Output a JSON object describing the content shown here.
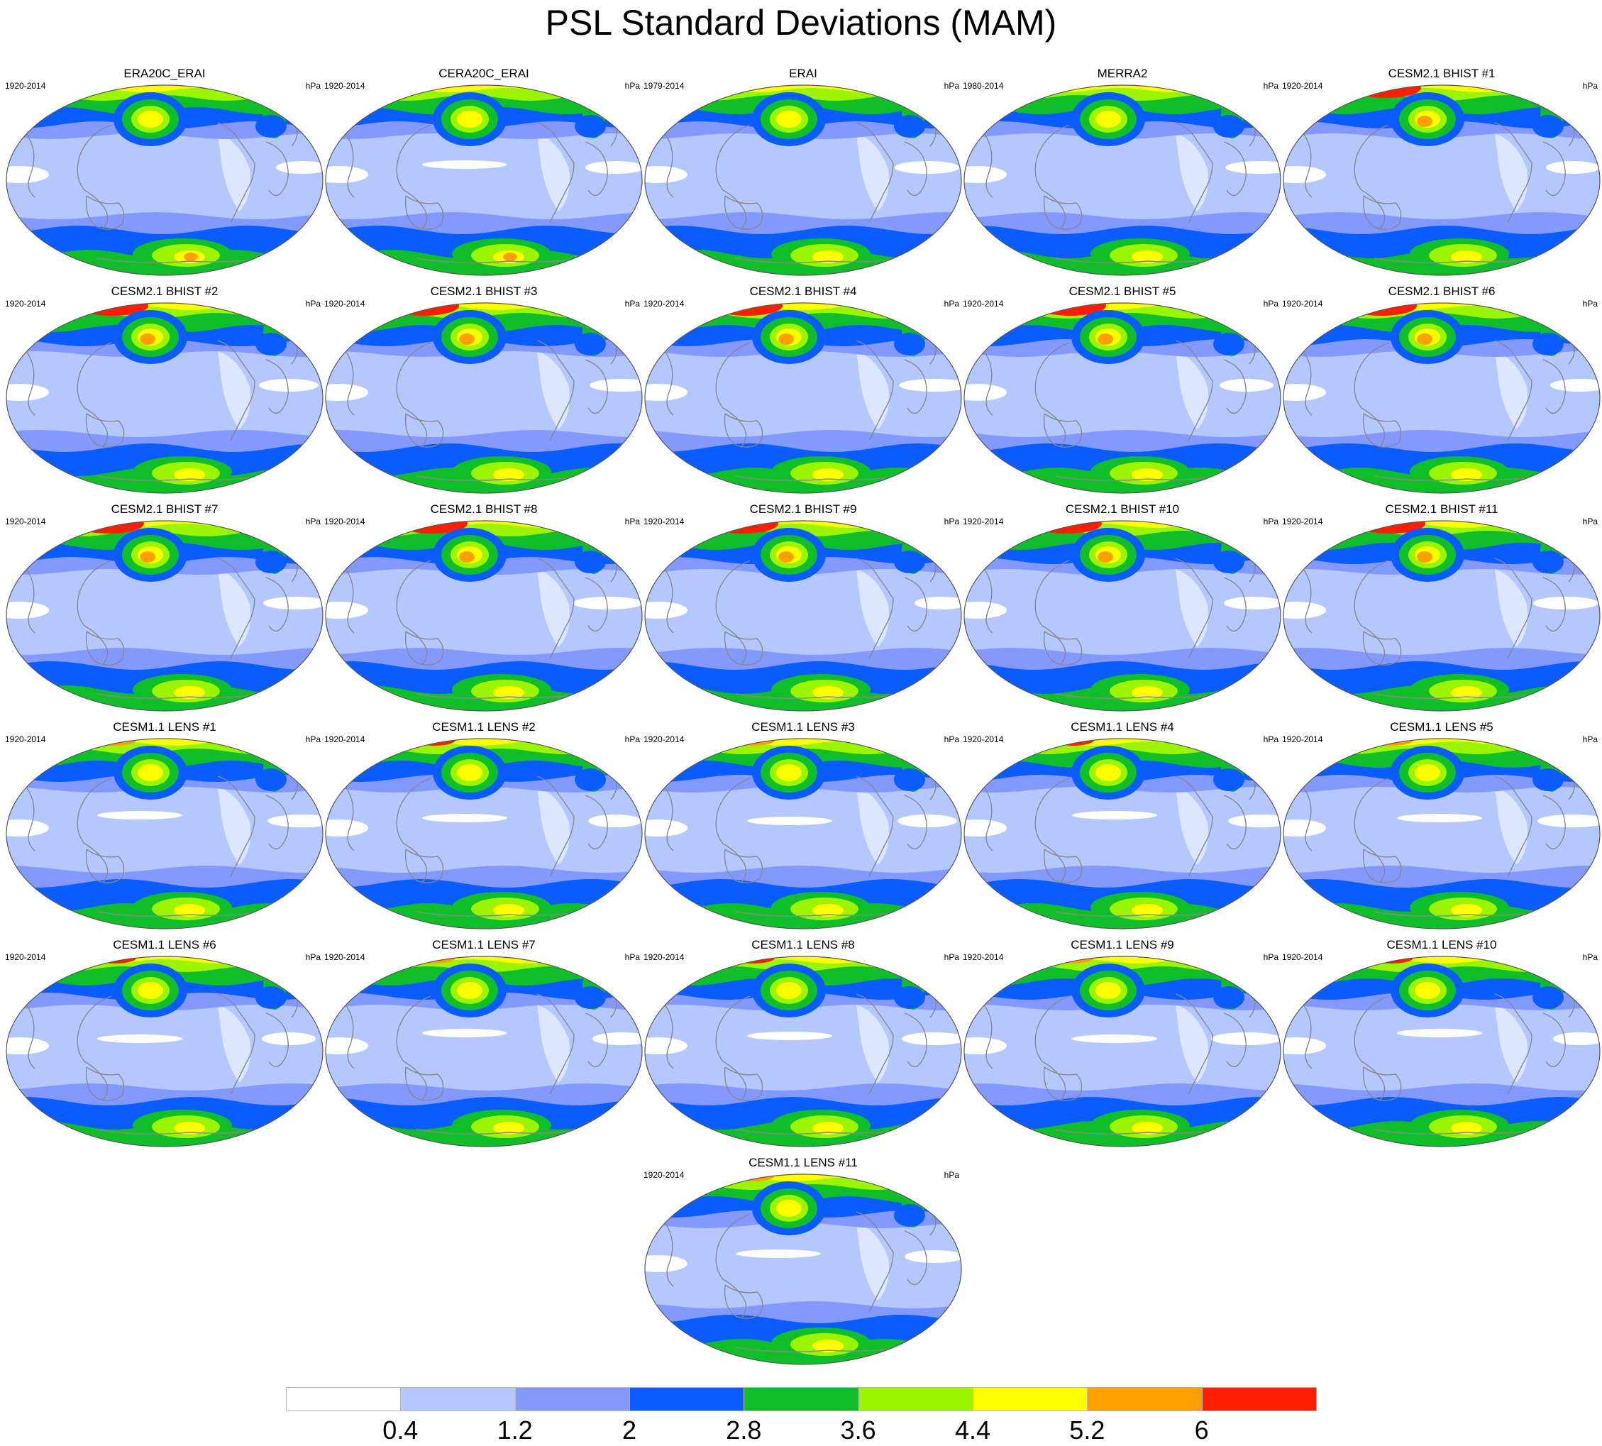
{
  "title": "PSL Standard Deviations (MAM)",
  "units": "hPa",
  "panels": [
    {
      "title": "ERA20C_ERAI",
      "years": "1920-2014"
    },
    {
      "title": "CERA20C_ERAI",
      "years": "1920-2014"
    },
    {
      "title": "ERAI",
      "years": "1979-2014"
    },
    {
      "title": "MERRA2",
      "years": "1980-2014"
    },
    {
      "title": "CESM2.1 BHIST #1",
      "years": "1920-2014"
    },
    {
      "title": "CESM2.1 BHIST #2",
      "years": "1920-2014"
    },
    {
      "title": "CESM2.1 BHIST #3",
      "years": "1920-2014"
    },
    {
      "title": "CESM2.1 BHIST #4",
      "years": "1920-2014"
    },
    {
      "title": "CESM2.1 BHIST #5",
      "years": "1920-2014"
    },
    {
      "title": "CESM2.1 BHIST #6",
      "years": "1920-2014"
    },
    {
      "title": "CESM2.1 BHIST #7",
      "years": "1920-2014"
    },
    {
      "title": "CESM2.1 BHIST #8",
      "years": "1920-2014"
    },
    {
      "title": "CESM2.1 BHIST #9",
      "years": "1920-2014"
    },
    {
      "title": "CESM2.1 BHIST #10",
      "years": "1920-2014"
    },
    {
      "title": "CESM2.1 BHIST #11",
      "years": "1920-2014"
    },
    {
      "title": "CESM1.1 LENS #1",
      "years": "1920-2014"
    },
    {
      "title": "CESM1.1 LENS #2",
      "years": "1920-2014"
    },
    {
      "title": "CESM1.1 LENS #3",
      "years": "1920-2014"
    },
    {
      "title": "CESM1.1 LENS #4",
      "years": "1920-2014"
    },
    {
      "title": "CESM1.1 LENS #5",
      "years": "1920-2014"
    },
    {
      "title": "CESM1.1 LENS #6",
      "years": "1920-2014"
    },
    {
      "title": "CESM1.1 LENS #7",
      "years": "1920-2014"
    },
    {
      "title": "CESM1.1 LENS #8",
      "years": "1920-2014"
    },
    {
      "title": "CESM1.1 LENS #9",
      "years": "1920-2014"
    },
    {
      "title": "CESM1.1 LENS #10",
      "years": "1920-2014"
    },
    {
      "title": "CESM1.1 LENS #11",
      "years": "1920-2014"
    }
  ],
  "colorbar": {
    "colors": [
      "#ffffff",
      "#b4c8ff",
      "#8499ff",
      "#0a5cff",
      "#0fbe28",
      "#9bf500",
      "#ffff00",
      "#ffa000",
      "#ff1e00"
    ],
    "labels": [
      "0.4",
      "1.2",
      "2",
      "2.8",
      "3.6",
      "4.4",
      "5.2",
      "6"
    ]
  },
  "map_colors": {
    "ocean_fill": "#b4c8ff",
    "coastline": "#888888",
    "outline": "#555555"
  }
}
